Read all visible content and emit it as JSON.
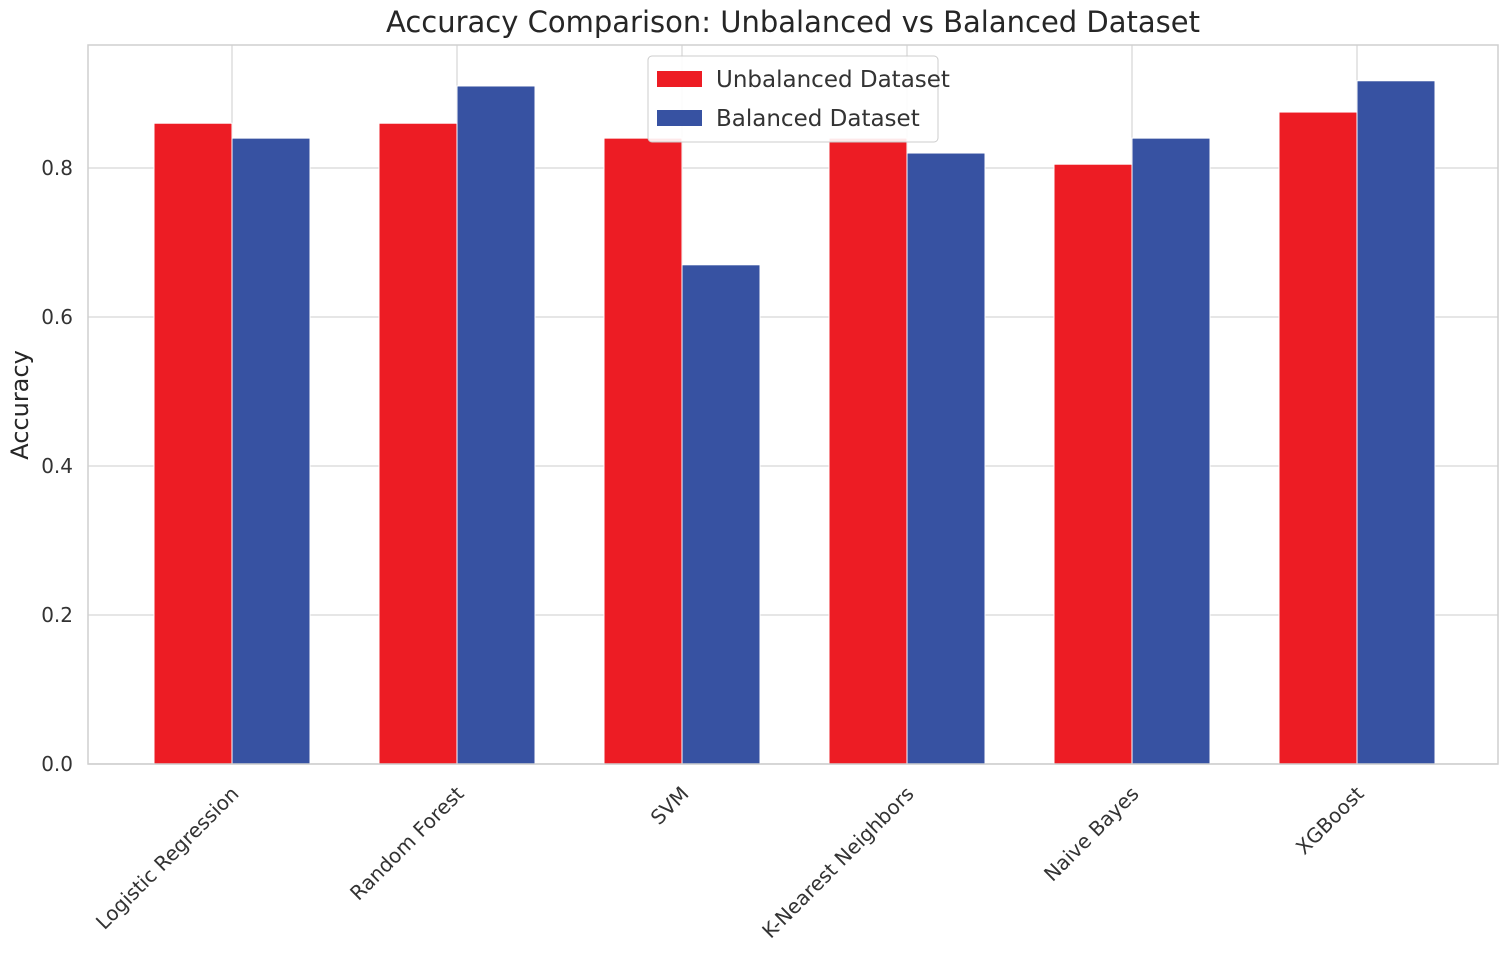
{
  "chart_data": {
    "type": "bar",
    "title": "Accuracy Comparison: Unbalanced vs Balanced Dataset",
    "xlabel": "",
    "ylabel": "Accuracy",
    "ylim": [
      0,
      0.965
    ],
    "yticks": [
      0.0,
      0.2,
      0.4,
      0.6,
      0.8
    ],
    "ytick_labels": [
      "0.0",
      "0.2",
      "0.4",
      "0.6",
      "0.8"
    ],
    "grid": true,
    "legend_position": "top-center",
    "categories": [
      "Logistic Regression",
      "Random Forest",
      "SVM",
      "K-Nearest Neighbors",
      "Naive Bayes",
      "XGBoost"
    ],
    "series": [
      {
        "name": "Unbalanced Dataset",
        "color": "#ed1c24",
        "values": [
          0.86,
          0.86,
          0.84,
          0.84,
          0.805,
          0.875
        ]
      },
      {
        "name": "Balanced Dataset",
        "color": "#3752a2",
        "values": [
          0.84,
          0.91,
          0.67,
          0.82,
          0.84,
          0.917
        ]
      }
    ]
  }
}
